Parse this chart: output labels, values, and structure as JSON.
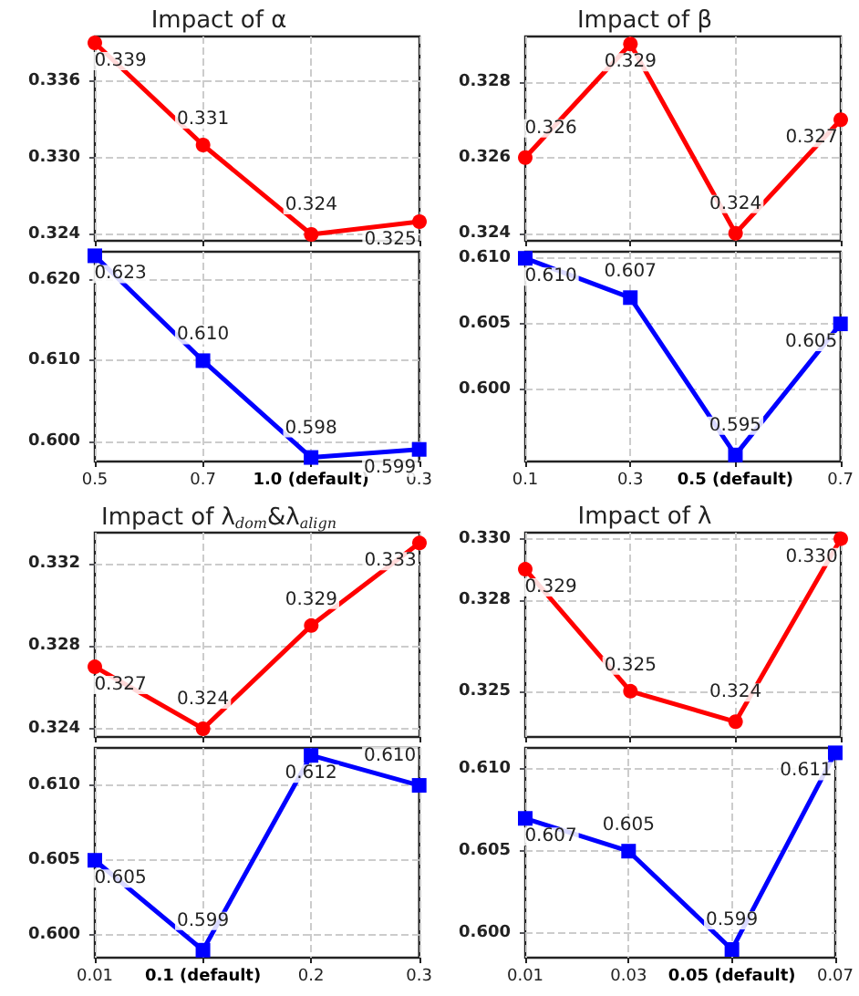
{
  "chart_data": [
    {
      "type": "line",
      "title": "Impact of α",
      "marker": "circle",
      "grid": true,
      "tick_labels": "y",
      "series": [
        {
          "color": "#ff0000",
          "values": [
            0.339,
            0.331,
            0.324,
            0.325
          ],
          "value_labels": [
            "0.339",
            "0.331",
            "0.324",
            "0.325"
          ]
        }
      ],
      "ylim": [
        0.3235,
        0.3395
      ],
      "yticks": [
        {
          "value": 0.324,
          "label": "0.324"
        },
        {
          "value": 0.33,
          "label": "0.330"
        },
        {
          "value": 0.336,
          "label": "0.336"
        }
      ]
    },
    {
      "type": "line",
      "categories": [
        "0.5",
        "0.7",
        "1.0 (default)",
        "0.3"
      ],
      "marker": "square",
      "grid": true,
      "series": [
        {
          "color": "#0000ff",
          "values": [
            0.623,
            0.61,
            0.598,
            0.599
          ],
          "value_labels": [
            "0.623",
            "0.610",
            "0.598",
            "0.599"
          ]
        }
      ],
      "ylim": [
        0.5975,
        0.6235
      ],
      "yticks": [
        {
          "value": 0.6,
          "label": "0.600"
        },
        {
          "value": 0.61,
          "label": "0.610"
        },
        {
          "value": 0.62,
          "label": "0.620"
        }
      ]
    },
    {
      "type": "line",
      "title": "Impact of β",
      "marker": "circle",
      "grid": true,
      "tick_labels": "y",
      "series": [
        {
          "color": "#ff0000",
          "values": [
            0.326,
            0.329,
            0.324,
            0.327
          ],
          "value_labels": [
            "0.326",
            "0.329",
            "0.324",
            "0.327"
          ]
        }
      ],
      "ylim": [
        0.3238,
        0.3292
      ],
      "yticks": [
        {
          "value": 0.324,
          "label": "0.324"
        },
        {
          "value": 0.326,
          "label": "0.326"
        },
        {
          "value": 0.328,
          "label": "0.328"
        }
      ]
    },
    {
      "type": "line",
      "categories": [
        "0.1",
        "0.3",
        "0.5 (default)",
        "0.7"
      ],
      "marker": "square",
      "grid": true,
      "series": [
        {
          "color": "#0000ff",
          "values": [
            0.61,
            0.607,
            0.595,
            0.605
          ],
          "value_labels": [
            "0.610",
            "0.607",
            "0.595",
            "0.605"
          ]
        }
      ],
      "ylim": [
        0.5945,
        0.6105
      ],
      "yticks": [
        {
          "value": 0.6,
          "label": "0.600"
        },
        {
          "value": 0.605,
          "label": "0.605"
        },
        {
          "value": 0.61,
          "label": "0.610"
        }
      ]
    },
    {
      "type": "line",
      "title": "Impact of λ$_{dom}$&λ$_{align}$",
      "marker": "circle",
      "grid": true,
      "tick_labels": "y",
      "series": [
        {
          "color": "#ff0000",
          "values": [
            0.327,
            0.324,
            0.329,
            0.333
          ],
          "value_labels": [
            "0.327",
            "0.324",
            "0.329",
            "0.333"
          ]
        }
      ],
      "ylim": [
        0.3236,
        0.3335
      ],
      "yticks": [
        {
          "value": 0.324,
          "label": "0.324"
        },
        {
          "value": 0.328,
          "label": "0.328"
        },
        {
          "value": 0.332,
          "label": "0.332"
        }
      ]
    },
    {
      "type": "line",
      "categories": [
        "0.01",
        "0.1 (default)",
        "0.2",
        "0.3"
      ],
      "marker": "square",
      "grid": true,
      "series": [
        {
          "color": "#0000ff",
          "values": [
            0.605,
            0.599,
            0.612,
            0.61
          ],
          "value_labels": [
            "0.605",
            "0.599",
            "0.612",
            "0.610"
          ]
        }
      ],
      "ylim": [
        0.5985,
        0.6125
      ],
      "yticks": [
        {
          "value": 0.6,
          "label": "0.600"
        },
        {
          "value": 0.605,
          "label": "0.605"
        },
        {
          "value": 0.61,
          "label": "0.610"
        }
      ]
    },
    {
      "type": "line",
      "title": "Impact of λ",
      "marker": "circle",
      "grid": true,
      "tick_labels": "y",
      "series": [
        {
          "color": "#ff0000",
          "values": [
            0.329,
            0.325,
            0.324,
            0.33
          ],
          "value_labels": [
            "0.329",
            "0.325",
            "0.324",
            "0.330"
          ]
        }
      ],
      "ylim": [
        0.3235,
        0.3302
      ],
      "yticks": [
        {
          "value": 0.325,
          "label": "0.325"
        },
        {
          "value": 0.328,
          "label": "0.328"
        },
        {
          "value": 0.33,
          "label": "0.330"
        }
      ]
    },
    {
      "type": "line",
      "categories": [
        "0.01",
        "0.03",
        "0.05 (default)",
        "0.07"
      ],
      "marker": "square",
      "grid": true,
      "series": [
        {
          "color": "#0000ff",
          "values": [
            0.607,
            0.605,
            0.599,
            0.611
          ],
          "value_labels": [
            "0.607",
            "0.605",
            "0.599",
            "0.611"
          ]
        }
      ],
      "ylim": [
        0.5985,
        0.6113
      ],
      "yticks": [
        {
          "value": 0.6,
          "label": "0.600"
        },
        {
          "value": 0.605,
          "label": "0.605"
        },
        {
          "value": 0.61,
          "label": "0.610"
        }
      ]
    }
  ]
}
